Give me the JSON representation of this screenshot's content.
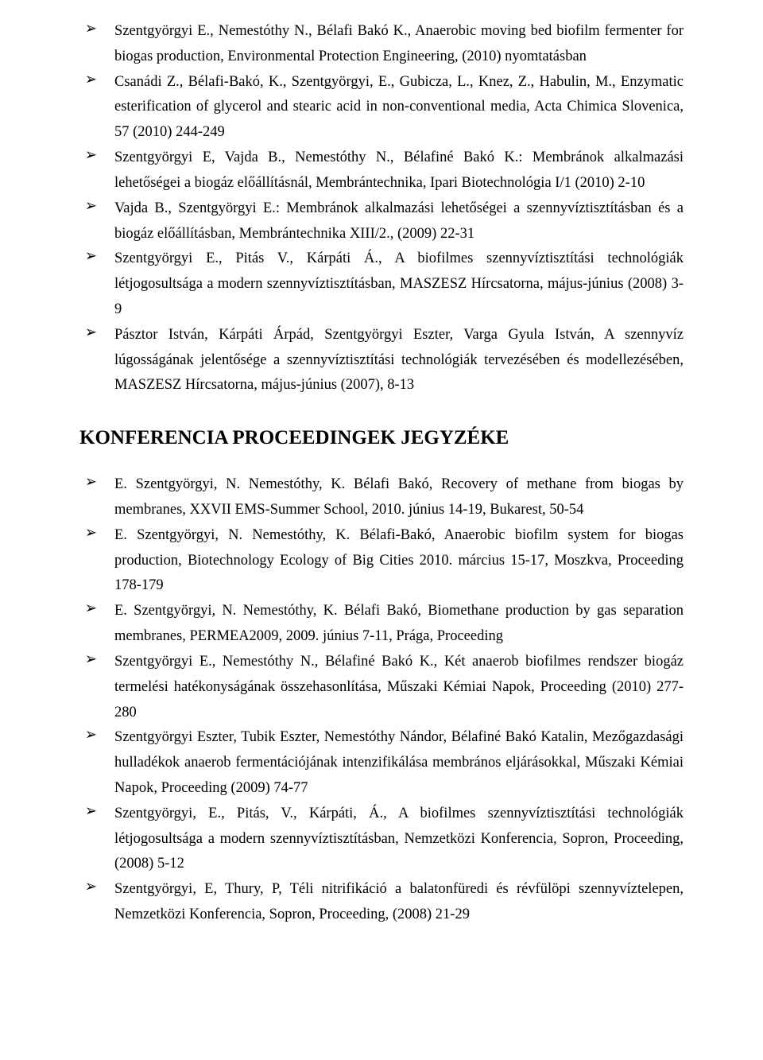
{
  "section1": {
    "items": [
      "Szentgyörgyi E., Nemestóthy N., Bélafi Bakó K., Anaerobic moving bed biofilm fermenter for biogas production, Environmental Protection Engineering, (2010) nyomtatásban",
      "Csanádi Z., Bélafi-Bakó, K., Szentgyörgyi, E., Gubicza, L., Knez, Z., Habulin, M., Enzymatic esterification of glycerol and stearic acid in non-conventional media, Acta Chimica Slovenica, 57 (2010) 244-249",
      "Szentgyörgyi E, Vajda B., Nemestóthy N., Bélafiné Bakó K.: Membránok alkalmazási lehetőségei a biogáz előállításnál, Membrántechnika, Ipari Biotechnológia I/1 (2010) 2-10",
      "Vajda B., Szentgyörgyi E.: Membránok alkalmazási lehetőségei a szennyvíztisztításban és a biogáz előállításban, Membrántechnika XIII/2., (2009) 22-31",
      "Szentgyörgyi E., Pitás V., Kárpáti Á., A biofilmes szennyvíztisztítási technológiák létjogosultsága a modern szennyvíztisztításban, MASZESZ Hírcsatorna, május-június (2008) 3-9",
      "Pásztor István, Kárpáti Árpád, Szentgyörgyi Eszter, Varga Gyula István, A szennyvíz lúgosságának jelentősége a szennyvíztisztítási technológiák tervezésében és modellezésében, MASZESZ Hírcsatorna, május-június (2007), 8-13"
    ]
  },
  "heading": "KONFERENCIA PROCEEDINGEK JEGYZÉKE",
  "section2": {
    "items": [
      "E. Szentgyörgyi, N. Nemestóthy, K. Bélafi Bakó, Recovery of methane from biogas by membranes, XXVII EMS-Summer School, 2010. június 14-19, Bukarest, 50-54",
      "E. Szentgyörgyi, N. Nemestóthy, K. Bélafi-Bakó, Anaerobic biofilm system for biogas production, Biotechnology Ecology of Big Cities 2010. március 15-17, Moszkva, Proceeding 178-179",
      "E. Szentgyörgyi, N. Nemestóthy, K. Bélafi Bakó, Biomethane production by gas separation membranes, PERMEA2009, 2009. június 7-11, Prága, Proceeding",
      "Szentgyörgyi E., Nemestóthy N., Bélafiné Bakó K., Két anaerob biofilmes rendszer biogáz termelési hatékonyságának összehasonlítása, Műszaki Kémiai Napok, Proceeding (2010) 277-280",
      "Szentgyörgyi Eszter, Tubik Eszter, Nemestóthy Nándor, Bélafiné Bakó Katalin, Mezőgazdasági hulladékok anaerob fermentációjának intenzifikálása membrános eljárásokkal, Műszaki Kémiai Napok, Proceeding (2009) 74-77",
      "Szentgyörgyi, E., Pitás, V., Kárpáti, Á., A biofilmes szennyvíztisztítási technológiák létjogosultsága a modern szennyvíztisztításban, Nemzetközi Konferencia, Sopron, Proceeding, (2008) 5-12",
      "Szentgyörgyi, E, Thury, P, Téli nitrifikáció a balatonfüredi és révfülöpi szennyvíztelepen, Nemzetközi Konferencia, Sopron, Proceeding, (2008) 21-29"
    ]
  }
}
